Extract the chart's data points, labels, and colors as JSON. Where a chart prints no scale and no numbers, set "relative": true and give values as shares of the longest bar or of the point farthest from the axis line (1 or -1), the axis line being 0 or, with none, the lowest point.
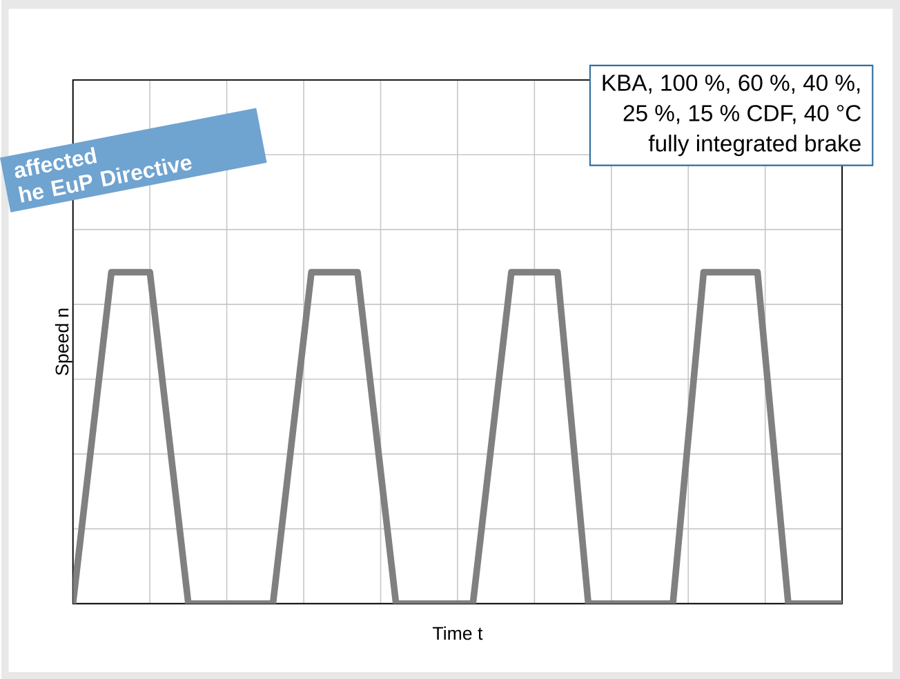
{
  "chart_data": {
    "type": "line",
    "relative": true,
    "xlabel": "Time t",
    "ylabel": "Speed n",
    "categories": [
      null,
      null,
      null,
      null,
      null,
      null,
      null,
      null,
      null,
      null,
      null,
      null,
      null,
      null,
      null,
      null,
      null,
      null,
      null,
      null,
      null,
      null,
      null,
      null,
      null,
      null,
      null,
      null,
      null,
      null,
      null,
      null,
      null,
      null,
      null,
      null,
      null,
      null,
      null,
      null,
      null,
      null,
      null,
      null,
      null,
      null,
      null,
      null,
      null,
      null,
      null,
      null,
      null,
      null,
      null,
      null,
      null,
      null,
      null,
      null,
      null,
      null,
      null,
      null,
      null,
      null,
      null,
      null,
      null,
      null,
      null,
      null,
      null,
      null,
      null,
      null,
      null,
      null,
      null,
      null,
      null,
      null,
      null,
      null,
      null,
      null,
      null,
      null,
      null,
      null,
      null,
      null,
      null,
      null,
      null,
      null,
      null,
      null,
      null,
      null,
      null
    ],
    "values": [
      0,
      0.2,
      0.4,
      0.6,
      0.8,
      1,
      1,
      1,
      1,
      1,
      1,
      0.8,
      0.6,
      0.4,
      0.2,
      0,
      0,
      0,
      0,
      0,
      0,
      0,
      0,
      0,
      0,
      0,
      0,
      0.2,
      0.4,
      0.6,
      0.8,
      1,
      1,
      1,
      1,
      1,
      1,
      1,
      0.8,
      0.6,
      0.4,
      0.2,
      0,
      0,
      0,
      0,
      0,
      0,
      0,
      0,
      0,
      0,
      0,
      0.2,
      0.4,
      0.6,
      0.8,
      1,
      1,
      1,
      1,
      1,
      1,
      1,
      0.75,
      0.5,
      0.25,
      0,
      0,
      0,
      0,
      0,
      0,
      0,
      0,
      0,
      0,
      0,
      0,
      0.25,
      0.5,
      0.75,
      1,
      1,
      1,
      1,
      1,
      1,
      1,
      1,
      0.75,
      0.5,
      0.25,
      0,
      0,
      0,
      0,
      0,
      0,
      0,
      0
    ],
    "color": "#808080",
    "grid": true,
    "tick_labels": false,
    "marker": "none",
    "line_style": "solid",
    "annotations": [
      "KBA, 100 %, 60 %, 40 %,",
      "25 %, 15 % CDF, 40 °C",
      "fully integrated brake",
      "affected",
      "he EuP Directive"
    ]
  }
}
